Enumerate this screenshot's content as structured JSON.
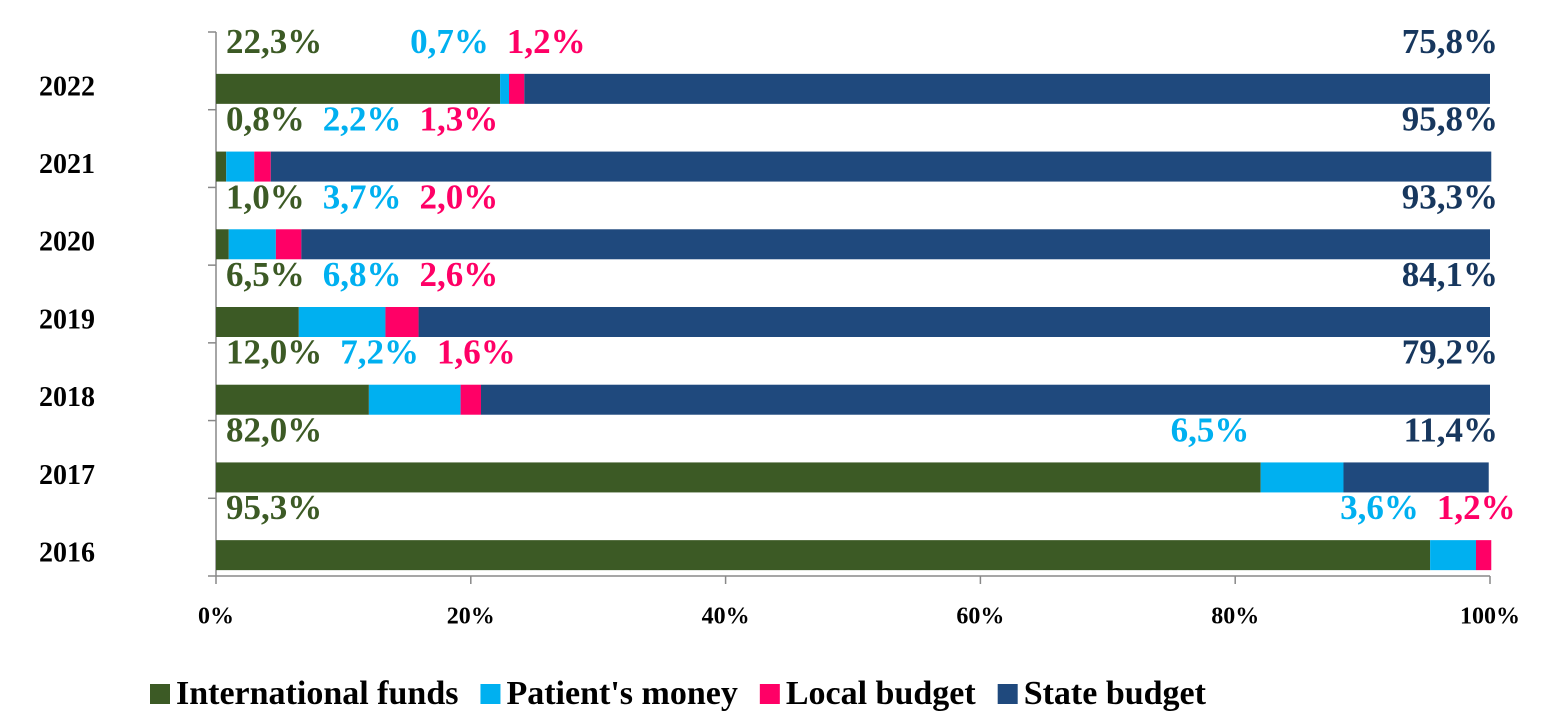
{
  "chart_data": {
    "type": "stacked_bar_horizontal",
    "categories": [
      "2022",
      "2021",
      "2020",
      "2019",
      "2018",
      "2017",
      "2016"
    ],
    "series": [
      {
        "name": "International funds",
        "color": "#3c5a25",
        "values": [
          22.3,
          0.8,
          1.0,
          6.5,
          12.0,
          82.0,
          95.3
        ],
        "value_labels": [
          "22,3%",
          "0,8%",
          "1,0%",
          "6,5%",
          "12,0%",
          "82,0%",
          "95,3%"
        ]
      },
      {
        "name": "Patient's money",
        "color": "#00b0f0",
        "values": [
          0.7,
          2.2,
          3.7,
          6.8,
          7.2,
          6.5,
          3.6
        ],
        "value_labels": [
          "0,7%",
          "2,2%",
          "3,7%",
          "6,8%",
          "7,2%",
          "6,5%",
          "3,6%"
        ]
      },
      {
        "name": "Local budget",
        "color": "#ff0066",
        "values": [
          1.2,
          1.3,
          2.0,
          2.6,
          1.6,
          null,
          1.2
        ],
        "value_labels": [
          "1,2%",
          "1,3%",
          "2,0%",
          "2,6%",
          "1,6%",
          null,
          "1,2%"
        ]
      },
      {
        "name": "State budget",
        "color": "#1f497d",
        "values": [
          75.8,
          95.8,
          93.3,
          84.1,
          79.2,
          11.4,
          null
        ],
        "value_labels": [
          "75,8%",
          "95,8%",
          "93,3%",
          "84,1%",
          "79,2%",
          "11,4%",
          null
        ]
      }
    ],
    "xlim": [
      0,
      100
    ],
    "xticks": [
      {
        "value": 0,
        "label": "0%"
      },
      {
        "value": 20,
        "label": "20%"
      },
      {
        "value": 40,
        "label": "40%"
      },
      {
        "value": 60,
        "label": "60%"
      },
      {
        "value": 80,
        "label": "80%"
      },
      {
        "value": 100,
        "label": "100%"
      }
    ],
    "legend": "bottom"
  }
}
